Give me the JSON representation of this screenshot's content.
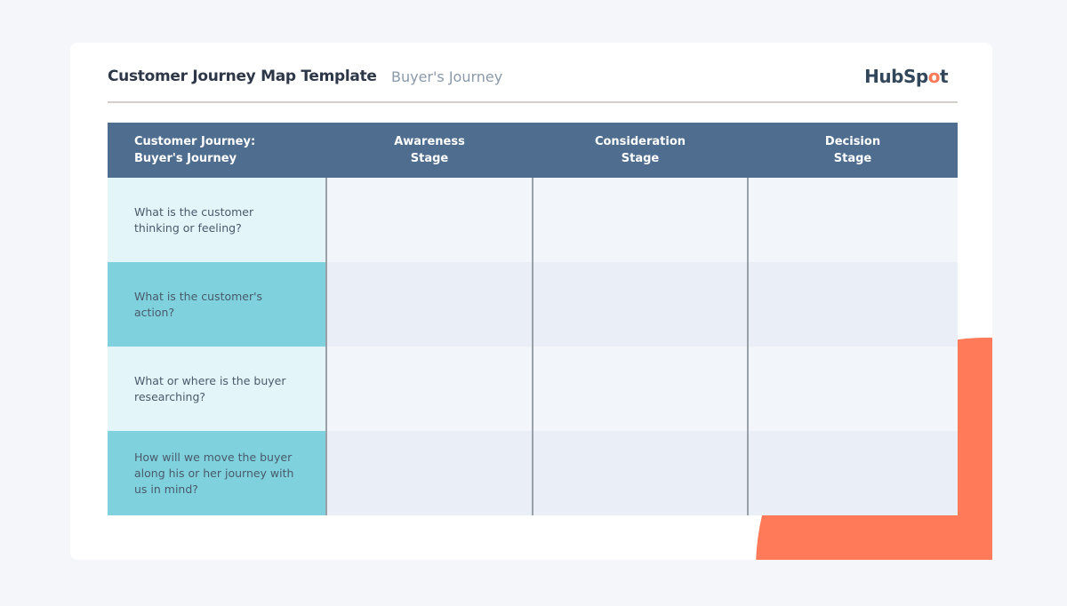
{
  "header": {
    "title": "Customer Journey Map Template",
    "subtitle": "Buyer's Journey",
    "logo": "HubSpot"
  },
  "colors": {
    "header_bg": "#4f6d8f",
    "accent": "#ff7a59",
    "teal": "#7fd1dd"
  },
  "table": {
    "columns": [
      "Customer Journey:\nBuyer's Journey",
      "Awareness\nStage",
      "Consideration\nStage",
      "Decision\nStage"
    ],
    "rows": [
      "What is the customer thinking or feeling?",
      "What is the customer's action?",
      "What or where is the buyer researching?",
      "How will we move the buyer along his or her journey with us in mind?"
    ]
  }
}
